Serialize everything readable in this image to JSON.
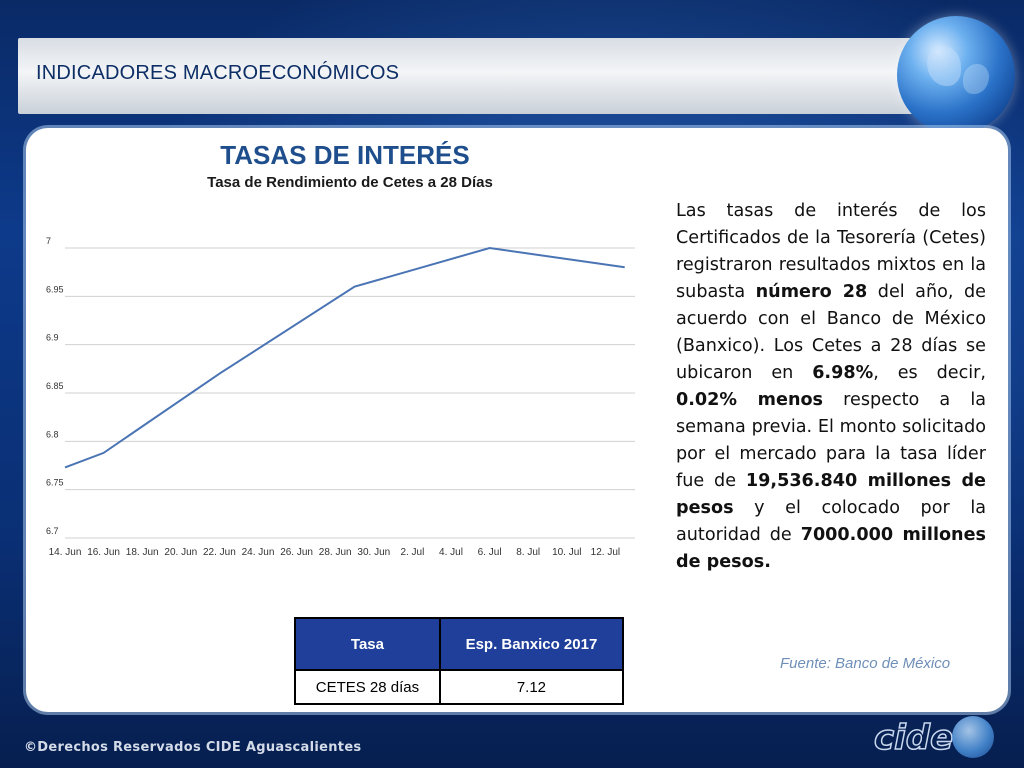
{
  "header": {
    "title": "INDICADORES MACROECONÓMICOS"
  },
  "chart_data": {
    "type": "line",
    "title": "TASAS DE INTERÉS",
    "subtitle": "Tasa de Rendimiento de Cetes a 28 Días",
    "xlabel": "",
    "ylabel": "",
    "categories": [
      "14. Jun",
      "16. Jun",
      "18. Jun",
      "20. Jun",
      "22. Jun",
      "24. Jun",
      "26. Jun",
      "28. Jun",
      "30. Jun",
      "2. Jul",
      "4. Jul",
      "6. Jul",
      "8. Jul",
      "10. Jul",
      "12. Jul"
    ],
    "y_ticks": [
      "6.7",
      "6.75",
      "6.8",
      "6.85",
      "6.9",
      "6.95",
      "7"
    ],
    "ylim": [
      6.7,
      7.0
    ],
    "grid": true,
    "series": [
      {
        "points": [
          {
            "x": "14. Jun",
            "y": 6.773
          },
          {
            "x": "16. Jun",
            "y": 6.788
          },
          {
            "x": "22. Jun",
            "y": 6.87
          },
          {
            "x": "29. Jun",
            "y": 6.96
          },
          {
            "x": "6. Jul",
            "y": 7.0
          },
          {
            "x": "13. Jul",
            "y": 6.98
          }
        ]
      }
    ],
    "line_color": "#4a74b4"
  },
  "description": {
    "s1": "Las tasas de interés de los Certificados de la Tesorería (Cetes) registraron resultados mixtos en la subasta ",
    "b1": "número 28",
    "s2": " del año, de acuerdo con el Banco de México (Banxico). Los Cetes a 28 días se ubicaron en ",
    "b2": "6.98%",
    "s3": ", es decir, ",
    "b3": "0.02% menos",
    "s4": " respecto a la semana previa. El monto solicitado por el mercado para la tasa líder fue de ",
    "b4": "19,536.840 millones de pesos",
    "s5": " y el colocado por la autoridad de ",
    "b5": "7000.000 millones de pesos."
  },
  "table": {
    "headers": [
      "Tasa",
      "Esp. Banxico 2017"
    ],
    "row": [
      "CETES 28 días",
      "7.12"
    ]
  },
  "source": "Fuente: Banco de México",
  "footer": {
    "copyright": "©Derechos Reservados CIDE Aguascalientes",
    "logo_text": "cide"
  },
  "colors": {
    "header_text": "#0d2f66",
    "chart_title": "#1f4e8c",
    "table_header": "#1f3f9a",
    "source": "#6f8fb8"
  }
}
